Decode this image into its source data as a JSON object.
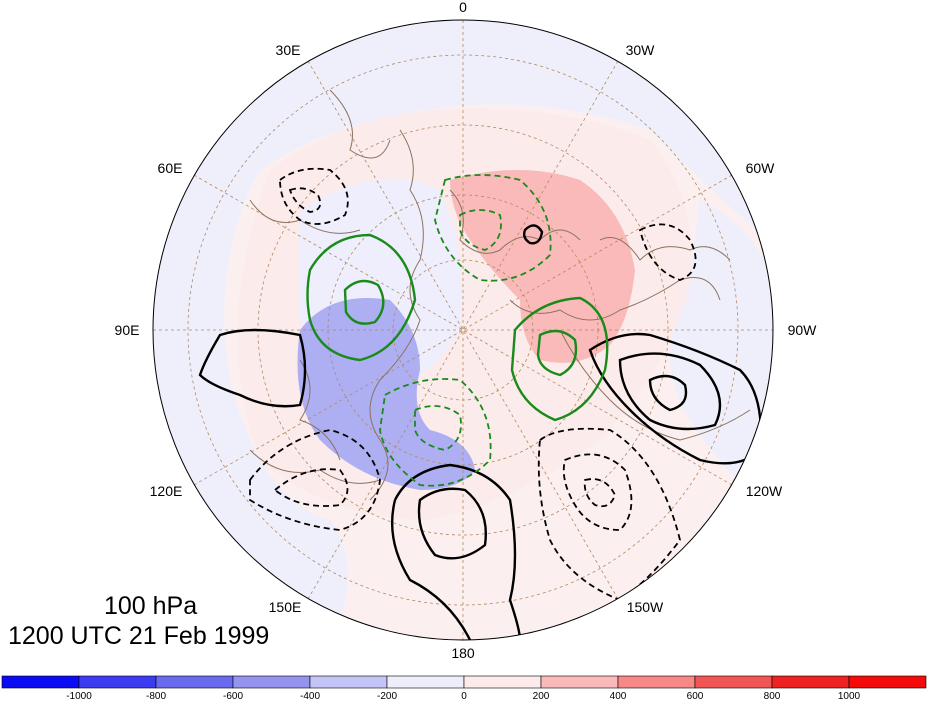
{
  "map": {
    "projection": "north-polar-stereographic",
    "longitude_labels": [
      "0",
      "30W",
      "60W",
      "90W",
      "120W",
      "150W",
      "180",
      "150E",
      "120E",
      "90E",
      "60E",
      "30E"
    ]
  },
  "caption": {
    "level": "100 hPa",
    "time": "1200 UTC 21 Feb 1999"
  },
  "colorbar": {
    "tick_labels": [
      "-1000",
      "-800",
      "-600",
      "-400",
      "-200",
      "0",
      "200",
      "400",
      "600",
      "800",
      "1000"
    ],
    "colors": [
      "#0a0af5",
      "#3b3bf2",
      "#6a6af0",
      "#9494ef",
      "#c4c4f6",
      "#ededfc",
      "#fdeaea",
      "#fbbaba",
      "#f78888",
      "#f25555",
      "#ee2222",
      "#f50a0a"
    ]
  },
  "colors": {
    "coast": "#8b7360",
    "grid": "#b08a60",
    "positive_contour": "#000000",
    "negative_contour": "#000000",
    "green_contour": "#1a8a1a"
  }
}
